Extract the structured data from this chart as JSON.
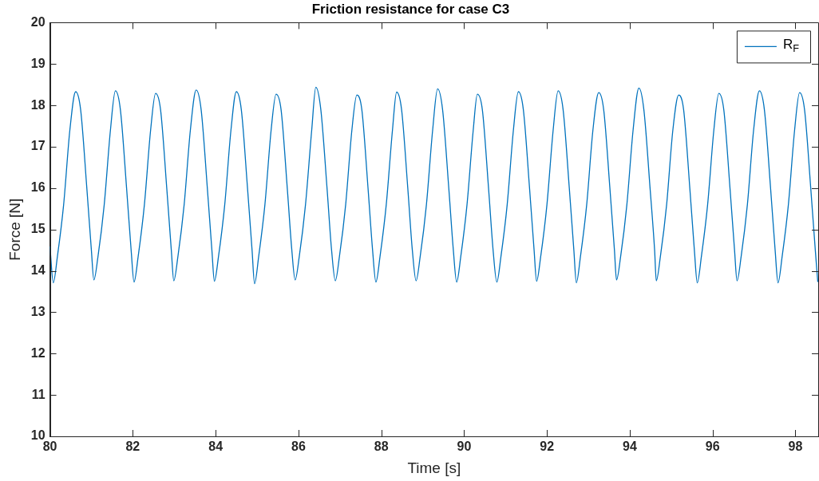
{
  "chart_data": {
    "type": "line",
    "title": "Friction resistance for case C3",
    "xlabel": "Time [s]",
    "ylabel": "Force [N]",
    "xlim": [
      80,
      98.55
    ],
    "xticks": [
      80,
      82,
      84,
      86,
      88,
      90,
      92,
      94,
      96,
      98
    ],
    "ylim": [
      10,
      20
    ],
    "yticks": [
      10,
      11,
      12,
      13,
      14,
      15,
      16,
      17,
      18,
      19,
      20
    ],
    "grid": false,
    "legend": "top right",
    "marker": "none",
    "line_style": "solid",
    "series": [
      {
        "name": "R$_{F}$",
        "color": "#0072bd",
        "x": [
          80,
          80.08,
          80.18,
          80.33,
          80.48,
          80.62,
          80.74,
          80.89,
          81.0,
          81.06,
          81.16,
          81.31,
          81.46,
          81.58,
          81.7,
          81.85,
          81.96,
          82.03,
          82.13,
          82.28,
          82.43,
          82.55,
          82.67,
          82.82,
          82.93,
          82.99,
          83.09,
          83.24,
          83.39,
          83.53,
          83.65,
          83.8,
          83.91,
          83.97,
          84.07,
          84.22,
          84.37,
          84.5,
          84.62,
          84.77,
          84.88,
          84.94,
          85.04,
          85.19,
          85.34,
          85.46,
          85.58,
          85.73,
          85.84,
          85.92,
          86.02,
          86.17,
          86.32,
          86.42,
          86.54,
          86.69,
          86.8,
          86.89,
          86.99,
          87.14,
          87.29,
          87.41,
          87.53,
          87.68,
          87.79,
          87.87,
          87.97,
          88.12,
          88.27,
          88.37,
          88.49,
          88.64,
          88.75,
          88.84,
          88.94,
          89.09,
          89.24,
          89.36,
          89.48,
          89.63,
          89.74,
          89.82,
          89.92,
          90.07,
          90.22,
          90.32,
          90.44,
          90.59,
          90.7,
          90.79,
          90.89,
          91.04,
          91.19,
          91.31,
          91.43,
          91.58,
          91.69,
          91.75,
          91.85,
          92.0,
          92.15,
          92.27,
          92.39,
          92.54,
          92.65,
          92.71,
          92.81,
          92.96,
          93.11,
          93.25,
          93.37,
          93.52,
          93.63,
          93.68,
          93.78,
          93.93,
          94.08,
          94.22,
          94.34,
          94.49,
          94.6,
          94.64,
          94.74,
          94.89,
          95.04,
          95.18,
          95.3,
          95.45,
          95.56,
          95.63,
          95.73,
          95.88,
          96.03,
          96.15,
          96.27,
          96.42,
          96.53,
          96.59,
          96.69,
          96.84,
          96.99,
          97.13,
          97.25,
          97.4,
          97.51,
          97.58,
          97.68,
          97.83,
          97.98,
          98.1,
          98.22,
          98.37,
          98.48,
          98.54
        ],
        "values": [
          14.59,
          13.71,
          14.35,
          15.6,
          17.4,
          18.33,
          17.9,
          16.0,
          14.5,
          13.78,
          14.35,
          15.6,
          17.4,
          18.35,
          17.9,
          16.0,
          14.5,
          13.73,
          14.35,
          15.6,
          17.4,
          18.29,
          17.9,
          16.0,
          14.5,
          13.76,
          14.35,
          15.6,
          17.4,
          18.37,
          17.9,
          16.0,
          14.5,
          13.75,
          14.35,
          15.6,
          17.4,
          18.33,
          17.9,
          16.0,
          14.5,
          13.69,
          14.35,
          15.6,
          17.4,
          18.27,
          17.9,
          16.0,
          14.5,
          13.78,
          14.35,
          15.6,
          17.4,
          18.44,
          17.9,
          16.0,
          14.5,
          13.76,
          14.35,
          15.6,
          17.4,
          18.25,
          17.9,
          16.0,
          14.5,
          13.73,
          14.35,
          15.6,
          17.4,
          18.32,
          17.9,
          16.0,
          14.5,
          13.76,
          14.35,
          15.6,
          17.4,
          18.4,
          17.9,
          16.0,
          14.5,
          13.73,
          14.35,
          15.6,
          17.4,
          18.27,
          17.9,
          16.0,
          14.5,
          13.73,
          14.35,
          15.6,
          17.4,
          18.33,
          17.9,
          16.0,
          14.5,
          13.75,
          14.35,
          15.6,
          17.4,
          18.35,
          17.9,
          16.0,
          14.5,
          13.71,
          14.35,
          15.6,
          17.4,
          18.31,
          17.9,
          16.0,
          14.5,
          13.78,
          14.35,
          15.6,
          17.4,
          18.42,
          17.9,
          16.0,
          14.5,
          13.76,
          14.35,
          15.6,
          17.4,
          18.25,
          17.9,
          16.0,
          14.5,
          13.71,
          14.35,
          15.6,
          17.4,
          18.29,
          17.9,
          16.0,
          14.5,
          13.76,
          14.35,
          15.6,
          17.4,
          18.35,
          17.9,
          16.0,
          14.5,
          13.71,
          14.35,
          15.6,
          17.4,
          18.31,
          17.9,
          16.0,
          14.5,
          13.73
        ]
      }
    ]
  }
}
